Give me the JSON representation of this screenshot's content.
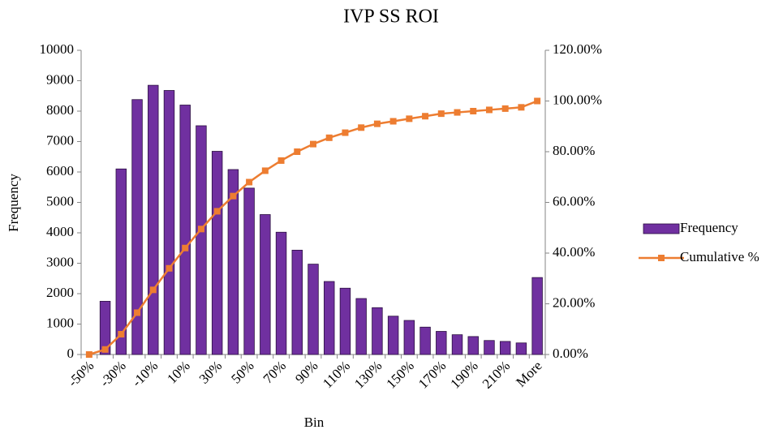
{
  "chart_data": {
    "type": "bar",
    "title": "IVP SS ROI",
    "xlabel": "Bin",
    "ylabel": "Frequency",
    "categories": [
      "-50%",
      null,
      "-30%",
      null,
      "-10%",
      null,
      "10%",
      null,
      "30%",
      null,
      "50%",
      null,
      "70%",
      null,
      "90%",
      null,
      "110%",
      null,
      "130%",
      null,
      "150%",
      null,
      "170%",
      null,
      "190%",
      null,
      "210%",
      null,
      "More"
    ],
    "series": [
      {
        "name": "Frequency",
        "type": "bar",
        "color": "#7030a0",
        "values": [
          0,
          1750,
          6100,
          8380,
          8850,
          8680,
          8200,
          7520,
          6680,
          6080,
          5470,
          4600,
          4020,
          3430,
          2970,
          2400,
          2180,
          1840,
          1540,
          1260,
          1120,
          900,
          760,
          650,
          590,
          460,
          430,
          380,
          2530
        ]
      },
      {
        "name": "Cumulative %",
        "type": "line",
        "axis": "y2",
        "color": "#ed7d31",
        "values": [
          0,
          2,
          8,
          16.5,
          25.5,
          34,
          42,
          49.5,
          56.5,
          62.5,
          68,
          72.5,
          76.5,
          80,
          83,
          85.5,
          87.5,
          89.5,
          91,
          92,
          93,
          94,
          95,
          95.5,
          96,
          96.5,
          97,
          97.5,
          100
        ]
      }
    ],
    "ylim": [
      0,
      10000
    ],
    "yticks": [
      0,
      1000,
      2000,
      3000,
      4000,
      5000,
      6000,
      7000,
      8000,
      9000,
      10000
    ],
    "y2lim": [
      0,
      120
    ],
    "y2ticks": [
      {
        "value": 0,
        "label": "0.00%"
      },
      {
        "value": 20,
        "label": "20.00%"
      },
      {
        "value": 40,
        "label": "40.00%"
      },
      {
        "value": 60,
        "label": "60.00%"
      },
      {
        "value": 80,
        "label": "80.00%"
      },
      {
        "value": 100,
        "label": "100.00%"
      },
      {
        "value": 120,
        "label": "120.00%"
      }
    ],
    "grid": false,
    "legend": "right"
  }
}
